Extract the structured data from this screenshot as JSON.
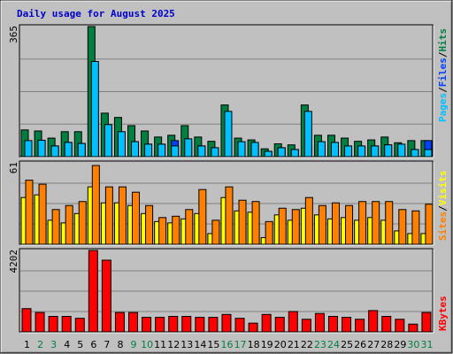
{
  "title": "Daily usage for August 2025",
  "colors": {
    "background": "#c0c0c0",
    "title": "#0000cc",
    "hits": "#008040",
    "files": "#0040ff",
    "pages": "#00c0ff",
    "visits": "#ffff00",
    "sites": "#ff8000",
    "kbytes": "#ff0000",
    "weekday_label": "#000000",
    "weekend_label": "#008040"
  },
  "chart_data": [
    {
      "type": "bar",
      "panel": "hits-files-pages",
      "categories": [
        "1",
        "2",
        "3",
        "4",
        "5",
        "6",
        "7",
        "8",
        "9",
        "10",
        "11",
        "12",
        "13",
        "14",
        "15",
        "16",
        "17",
        "18",
        "19",
        "20",
        "21",
        "22",
        "23",
        "24",
        "25",
        "26",
        "27",
        "28",
        "29",
        "30",
        "31"
      ],
      "weekend_days": [
        "2",
        "3",
        "9",
        "10",
        "16",
        "17",
        "23",
        "24",
        "30",
        "31"
      ],
      "axis_max_label": "365",
      "ylim": [
        0,
        365
      ],
      "legend": [
        "Pages",
        "/",
        "Files",
        "/",
        "Hits"
      ],
      "series": [
        {
          "name": "Hits",
          "values": [
            75,
            72,
            52,
            70,
            70,
            365,
            122,
            110,
            87,
            72,
            55,
            60,
            87,
            55,
            43,
            145,
            52,
            47,
            22,
            36,
            33,
            145,
            60,
            60,
            52,
            43,
            47,
            55,
            39,
            45,
            45
          ]
        },
        {
          "name": "Files",
          "values": [
            40,
            46,
            30,
            40,
            37,
            100,
            85,
            66,
            42,
            35,
            35,
            45,
            42,
            30,
            25,
            40,
            35,
            35,
            15,
            25,
            20,
            32,
            33,
            35,
            25,
            27,
            30,
            33,
            25,
            20,
            45
          ]
        },
        {
          "name": "Pages",
          "values": [
            45,
            46,
            30,
            40,
            37,
            267,
            90,
            70,
            42,
            35,
            35,
            30,
            50,
            30,
            25,
            127,
            42,
            40,
            15,
            25,
            20,
            127,
            42,
            40,
            30,
            30,
            30,
            33,
            35,
            20,
            20
          ]
        }
      ]
    },
    {
      "type": "bar",
      "panel": "visits-sites",
      "categories": [
        "1",
        "2",
        "3",
        "4",
        "5",
        "6",
        "7",
        "8",
        "9",
        "10",
        "11",
        "12",
        "13",
        "14",
        "15",
        "16",
        "17",
        "18",
        "19",
        "20",
        "21",
        "22",
        "23",
        "24",
        "25",
        "26",
        "27",
        "28",
        "29",
        "30",
        "31"
      ],
      "axis_max_label": "61",
      "ylim": [
        0,
        61
      ],
      "legend": [
        "Sites",
        "/",
        "Visits"
      ],
      "series": [
        {
          "name": "Visits",
          "values": [
            35,
            37,
            18,
            16,
            23,
            43,
            31,
            31,
            29,
            23,
            17,
            16,
            19,
            23,
            8,
            35,
            25,
            24,
            5,
            22,
            18,
            27,
            22,
            19,
            20,
            18,
            20,
            18,
            10,
            8,
            8
          ]
        },
        {
          "name": "Sites",
          "values": [
            48,
            45,
            26,
            29,
            32,
            59,
            43,
            43,
            39,
            29,
            20,
            21,
            26,
            41,
            18,
            43,
            33,
            32,
            17,
            27,
            26,
            35,
            29,
            31,
            29,
            32,
            32,
            32,
            26,
            25,
            30
          ]
        }
      ]
    },
    {
      "type": "bar",
      "panel": "kbytes",
      "categories": [
        "1",
        "2",
        "3",
        "4",
        "5",
        "6",
        "7",
        "8",
        "9",
        "10",
        "11",
        "12",
        "13",
        "14",
        "15",
        "16",
        "17",
        "18",
        "19",
        "20",
        "21",
        "22",
        "23",
        "24",
        "25",
        "26",
        "27",
        "28",
        "29",
        "30",
        "31"
      ],
      "axis_max_label": "4202",
      "ylim": [
        0,
        4202
      ],
      "legend": [
        "KBytes"
      ],
      "series": [
        {
          "name": "KBytes",
          "values": [
            1200,
            1000,
            800,
            800,
            700,
            4202,
            3700,
            1000,
            1000,
            750,
            750,
            800,
            800,
            750,
            750,
            900,
            700,
            450,
            900,
            750,
            1050,
            650,
            950,
            800,
            750,
            650,
            1100,
            800,
            650,
            400,
            1000
          ]
        }
      ]
    }
  ]
}
